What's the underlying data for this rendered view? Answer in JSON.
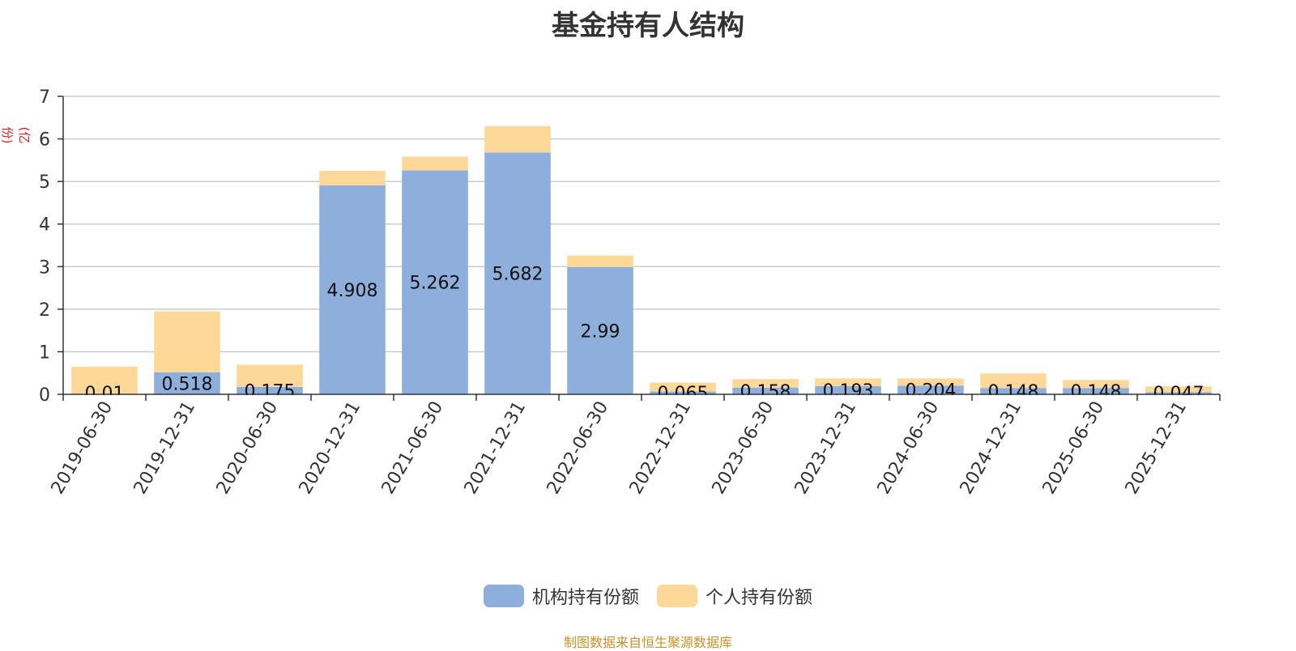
{
  "chart_data": {
    "type": "bar",
    "stacked": true,
    "title": "基金持有人结构",
    "ylabel": "(亿份)",
    "ylim": [
      0,
      7
    ],
    "yticks": [
      0,
      1,
      2,
      3,
      4,
      5,
      6,
      7
    ],
    "grid": true,
    "categories": [
      "2019-06-30",
      "2019-12-31",
      "2020-06-30",
      "2020-12-31",
      "2021-06-30",
      "2021-12-31",
      "2022-06-30",
      "2022-12-31",
      "2023-06-30",
      "2023-12-31",
      "2024-06-30",
      "2024-12-31",
      "2025-06-30",
      "2025-12-31"
    ],
    "series": [
      {
        "name": "机构持有份额",
        "color": "#8eaedb",
        "values": [
          0.01,
          0.518,
          0.175,
          4.908,
          5.262,
          5.682,
          2.99,
          0.065,
          0.158,
          0.193,
          0.204,
          0.148,
          0.148,
          0.047
        ],
        "labels": [
          "0.01",
          "0.518",
          "0.175",
          "4.908",
          "5.262",
          "5.682",
          "2.99",
          "0.065",
          "0.158",
          "0.193",
          "0.204",
          "0.148",
          "0.148",
          "0.047"
        ]
      },
      {
        "name": "个人持有份额",
        "color": "#fdd899",
        "values": [
          0.64,
          1.43,
          0.52,
          0.34,
          0.32,
          0.62,
          0.27,
          0.21,
          0.2,
          0.18,
          0.17,
          0.34,
          0.19,
          0.14
        ]
      }
    ],
    "legend_position": "bottom",
    "source": "制图数据来自恒生聚源数据库"
  },
  "colors": {
    "title": "#333333",
    "unit": "#e02020",
    "source": "#c8912b",
    "grid": "#cccccc",
    "axis": "#333333"
  }
}
